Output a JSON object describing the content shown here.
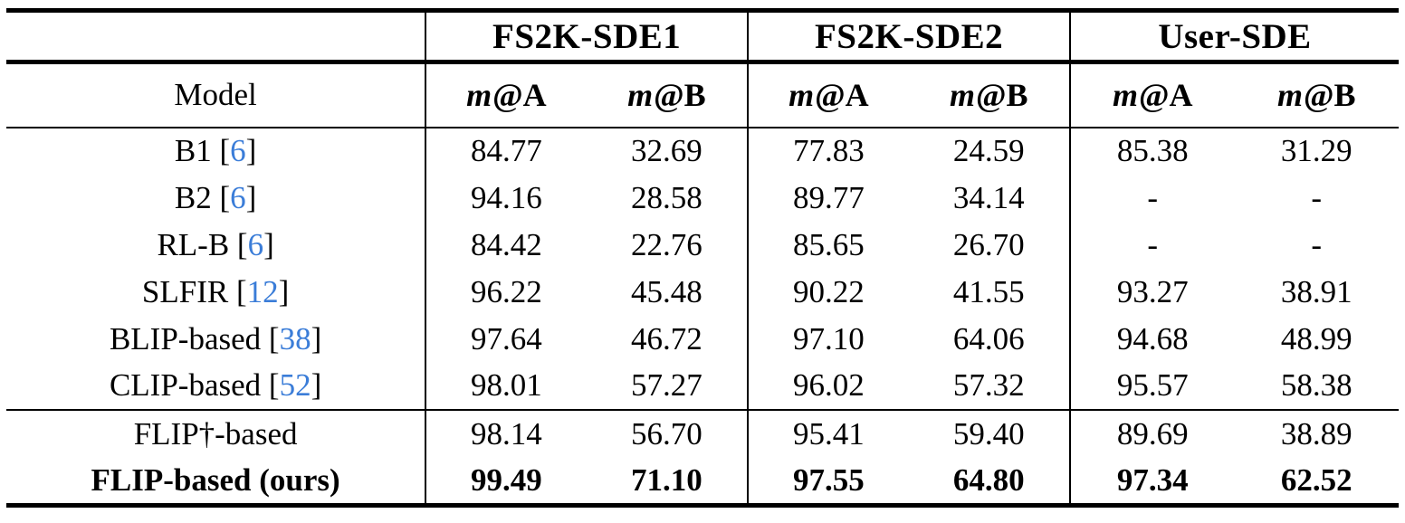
{
  "table": {
    "model_header": "Model",
    "metric_var": "m",
    "metric_a_suffix": "@A",
    "metric_b_suffix": "@B",
    "bracket_open": "[",
    "bracket_close": "]",
    "col_groups": [
      {
        "label": "FS2K-SDE1"
      },
      {
        "label": "FS2K-SDE2"
      },
      {
        "label": "User-SDE"
      }
    ],
    "rows_main": [
      {
        "model": "B1",
        "cite": "6",
        "bold": false,
        "values": [
          "84.77",
          "32.69",
          "77.83",
          "24.59",
          "85.38",
          "31.29"
        ]
      },
      {
        "model": "B2",
        "cite": "6",
        "bold": false,
        "values": [
          "94.16",
          "28.58",
          "89.77",
          "34.14",
          "-",
          "-"
        ]
      },
      {
        "model": "RL-B",
        "cite": "6",
        "bold": false,
        "values": [
          "84.42",
          "22.76",
          "85.65",
          "26.70",
          "-",
          "-"
        ]
      },
      {
        "model": "SLFIR",
        "cite": "12",
        "bold": false,
        "values": [
          "96.22",
          "45.48",
          "90.22",
          "41.55",
          "93.27",
          "38.91"
        ]
      },
      {
        "model": "BLIP-based",
        "cite": "38",
        "bold": false,
        "values": [
          "97.64",
          "46.72",
          "97.10",
          "64.06",
          "94.68",
          "48.99"
        ]
      },
      {
        "model": "CLIP-based",
        "cite": "52",
        "bold": false,
        "values": [
          "98.01",
          "57.27",
          "96.02",
          "57.32",
          "95.57",
          "58.38"
        ]
      }
    ],
    "rows_flip": [
      {
        "model": "FLIP†-based",
        "cite": null,
        "bold": false,
        "values": [
          "98.14",
          "56.70",
          "95.41",
          "59.40",
          "89.69",
          "38.89"
        ]
      },
      {
        "model": "FLIP-based (ours)",
        "cite": null,
        "bold": true,
        "values": [
          "99.49",
          "71.10",
          "97.55",
          "64.80",
          "97.34",
          "62.52"
        ]
      }
    ]
  },
  "colors": {
    "citation_blue": "#3b7dd8",
    "text_black": "#000000",
    "background": "#ffffff"
  }
}
